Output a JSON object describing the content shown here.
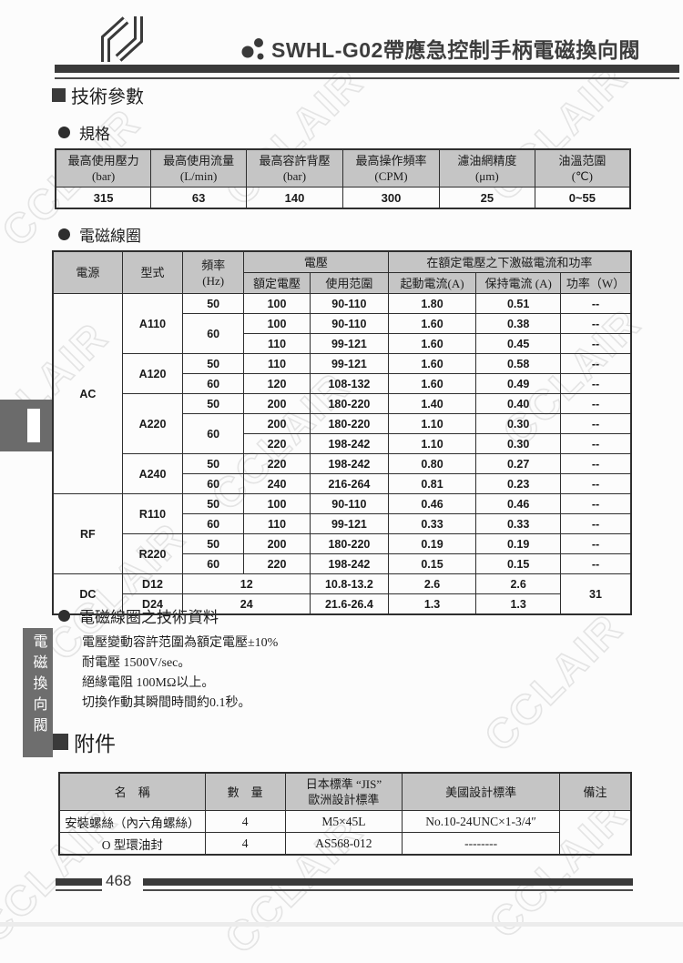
{
  "watermark": {
    "text": "CCLAIR"
  },
  "header": {
    "title": "SWHL-G02帶應急控制手柄電磁換向閥"
  },
  "sections": {
    "tech_params": "技術參數",
    "spec": "規格",
    "coil": "電磁線圈",
    "coil_tech": "電磁線圈之技術資料",
    "accessories": "附件"
  },
  "spec_table": {
    "header": [
      {
        "lines": [
          "最高使用壓力",
          "(bar)"
        ]
      },
      {
        "lines": [
          "最高使用流量",
          "(L/min)"
        ]
      },
      {
        "lines": [
          "最高容許背壓",
          "(bar)"
        ]
      },
      {
        "lines": [
          "最高操作頻率",
          "(CPM)"
        ]
      },
      {
        "lines": [
          "濾油網精度",
          "(μm)"
        ]
      },
      {
        "lines": [
          "油溫范圍",
          "(℃)"
        ]
      }
    ],
    "rows": [
      [
        {
          "t": "315"
        },
        {
          "t": "63"
        },
        {
          "t": "140"
        },
        {
          "t": "300"
        },
        {
          "t": "25"
        },
        {
          "t": "0~55"
        }
      ]
    ]
  },
  "coil_table": {
    "header": [
      [
        {
          "lines": [
            "電源"
          ],
          "rs": 2
        },
        {
          "lines": [
            "型式"
          ],
          "rs": 2
        },
        {
          "lines": [
            "頻率",
            "(Hz)"
          ],
          "rs": 2
        },
        {
          "lines": [
            "電壓"
          ],
          "cs": 2
        },
        {
          "lines": [
            "在額定電壓之下激磁電流和功率"
          ],
          "cs": 3
        }
      ],
      [
        {
          "lines": [
            "額定電壓"
          ]
        },
        {
          "lines": [
            "使用范圍"
          ]
        },
        {
          "lines": [
            "起動電流(A)"
          ]
        },
        {
          "lines": [
            "保持電流 (A)"
          ]
        },
        {
          "lines": [
            "功率（W）"
          ]
        }
      ]
    ],
    "rows": [
      [
        {
          "t": "AC",
          "rs": 10
        },
        {
          "t": "A110",
          "rs": 3
        },
        {
          "t": "50"
        },
        {
          "t": "100"
        },
        {
          "t": "90-110"
        },
        {
          "t": "1.80"
        },
        {
          "t": "0.51"
        },
        {
          "t": "--"
        }
      ],
      [
        {
          "t": "60",
          "rs": 2
        },
        {
          "t": "100"
        },
        {
          "t": "90-110"
        },
        {
          "t": "1.60"
        },
        {
          "t": "0.38"
        },
        {
          "t": "--"
        }
      ],
      [
        {
          "t": "110"
        },
        {
          "t": "99-121"
        },
        {
          "t": "1.60"
        },
        {
          "t": "0.45"
        },
        {
          "t": "--"
        }
      ],
      [
        {
          "t": "A120",
          "rs": 2
        },
        {
          "t": "50"
        },
        {
          "t": "110"
        },
        {
          "t": "99-121"
        },
        {
          "t": "1.60"
        },
        {
          "t": "0.58"
        },
        {
          "t": "--"
        }
      ],
      [
        {
          "t": "60"
        },
        {
          "t": "120"
        },
        {
          "t": "108-132"
        },
        {
          "t": "1.60"
        },
        {
          "t": "0.49"
        },
        {
          "t": "--"
        }
      ],
      [
        {
          "t": "A220",
          "rs": 3
        },
        {
          "t": "50"
        },
        {
          "t": "200"
        },
        {
          "t": "180-220"
        },
        {
          "t": "1.40"
        },
        {
          "t": "0.40"
        },
        {
          "t": "--"
        }
      ],
      [
        {
          "t": "60",
          "rs": 2
        },
        {
          "t": "200"
        },
        {
          "t": "180-220"
        },
        {
          "t": "1.10"
        },
        {
          "t": "0.30"
        },
        {
          "t": "--"
        }
      ],
      [
        {
          "t": "220"
        },
        {
          "t": "198-242"
        },
        {
          "t": "1.10"
        },
        {
          "t": "0.30"
        },
        {
          "t": "--"
        }
      ],
      [
        {
          "t": "A240",
          "rs": 2
        },
        {
          "t": "50"
        },
        {
          "t": "220"
        },
        {
          "t": "198-242"
        },
        {
          "t": "0.80"
        },
        {
          "t": "0.27"
        },
        {
          "t": "--"
        }
      ],
      [
        {
          "t": "60"
        },
        {
          "t": "240"
        },
        {
          "t": "216-264"
        },
        {
          "t": "0.81"
        },
        {
          "t": "0.23"
        },
        {
          "t": "--"
        }
      ],
      [
        {
          "t": "RF",
          "rs": 4
        },
        {
          "t": "R110",
          "rs": 2
        },
        {
          "t": "50"
        },
        {
          "t": "100"
        },
        {
          "t": "90-110"
        },
        {
          "t": "0.46"
        },
        {
          "t": "0.46"
        },
        {
          "t": "--"
        }
      ],
      [
        {
          "t": "60"
        },
        {
          "t": "110"
        },
        {
          "t": "99-121"
        },
        {
          "t": "0.33"
        },
        {
          "t": "0.33"
        },
        {
          "t": "--"
        }
      ],
      [
        {
          "t": "R220",
          "rs": 2
        },
        {
          "t": "50"
        },
        {
          "t": "200"
        },
        {
          "t": "180-220"
        },
        {
          "t": "0.19"
        },
        {
          "t": "0.19"
        },
        {
          "t": "--"
        }
      ],
      [
        {
          "t": "60"
        },
        {
          "t": "220"
        },
        {
          "t": "198-242"
        },
        {
          "t": "0.15"
        },
        {
          "t": "0.15"
        },
        {
          "t": "--"
        }
      ],
      [
        {
          "t": "DC",
          "rs": 2
        },
        {
          "t": "D12"
        },
        {
          "t": "12",
          "cs": 2
        },
        {
          "t": "10.8-13.2"
        },
        {
          "t": "2.6"
        },
        {
          "t": "2.6"
        },
        {
          "t": "31",
          "rs": 2
        }
      ],
      [
        {
          "t": "D24"
        },
        {
          "t": "24",
          "cs": 2
        },
        {
          "t": "21.6-26.4"
        },
        {
          "t": "1.3"
        },
        {
          "t": "1.3"
        }
      ]
    ]
  },
  "coil_notes": [
    "電壓變動容許范圍為額定電壓±10%",
    "耐電壓 1500V/sec。",
    "絕緣電阻 100MΩ以上。",
    "切換作動其瞬間時間約0.1秒。"
  ],
  "acc_table": {
    "header": [
      {
        "lines": [
          "名　稱"
        ]
      },
      {
        "lines": [
          "數　量"
        ]
      },
      {
        "lines": [
          "日本標準 “JIS”",
          "歐洲設計標準"
        ]
      },
      {
        "lines": [
          "美國設計標準"
        ]
      },
      {
        "lines": [
          "備注"
        ]
      }
    ],
    "rows": [
      [
        {
          "t": "安裝螺絲（內六角螺絲）"
        },
        {
          "t": "4"
        },
        {
          "t": "M5×45L"
        },
        {
          "t": "No.10-24UNC×1-3/4″"
        },
        {
          "t": "",
          "rs": 2
        }
      ],
      [
        {
          "t": "O 型環油封"
        },
        {
          "t": "4"
        },
        {
          "t": "AS568-012"
        },
        {
          "t": "--------"
        }
      ]
    ]
  },
  "sidebar": {
    "category_label": "電磁換向閥"
  },
  "footer": {
    "page_number": "468"
  }
}
